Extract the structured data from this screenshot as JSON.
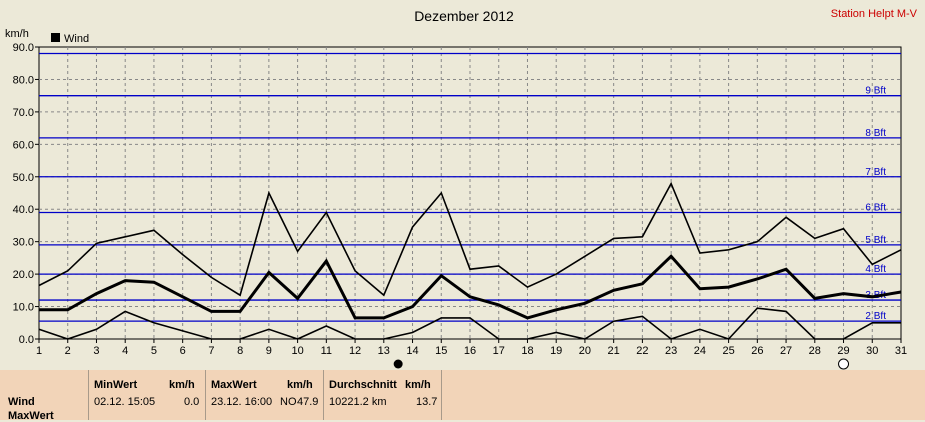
{
  "chart_data": {
    "type": "line",
    "title": "Dezember 2012",
    "station": "Station Helpt M-V",
    "ylabel": "km/h",
    "legend": {
      "label": "Wind",
      "placement": "top-left"
    },
    "ylim": [
      0,
      90
    ],
    "yticks": [
      "0.0",
      "10.0",
      "20.0",
      "30.0",
      "40.0",
      "50.0",
      "60.0",
      "70.0",
      "80.0",
      "90.0"
    ],
    "x": [
      1,
      2,
      3,
      4,
      5,
      6,
      7,
      8,
      9,
      10,
      11,
      12,
      13,
      14,
      15,
      16,
      17,
      18,
      19,
      20,
      21,
      22,
      23,
      24,
      25,
      26,
      27,
      28,
      29,
      30,
      31
    ],
    "beaufort": [
      {
        "label": "2 Bft",
        "value": 5.5
      },
      {
        "label": "3 Bft",
        "value": 12
      },
      {
        "label": "4 Bft",
        "value": 20
      },
      {
        "label": "5 Bft",
        "value": 29
      },
      {
        "label": "6 Bft",
        "value": 39
      },
      {
        "label": "7 Bft",
        "value": 50
      },
      {
        "label": "8 Bft",
        "value": 62
      },
      {
        "label": "9 Bft",
        "value": 75
      },
      {
        "label": "",
        "value": 88
      }
    ],
    "series": [
      {
        "name": "MaxWert",
        "values": [
          16.5,
          21,
          29.5,
          31.5,
          33.5,
          26,
          19,
          13.5,
          45,
          27,
          39,
          21,
          13.5,
          34.5,
          45,
          21.5,
          22.5,
          16,
          20,
          25.5,
          31,
          31.5,
          47.9,
          26.5,
          27.5,
          30,
          37.5,
          31,
          34,
          23,
          27.5
        ]
      },
      {
        "name": "Wind",
        "values": [
          9,
          9,
          14,
          18,
          17.5,
          13,
          8.5,
          8.5,
          20.5,
          12.5,
          24,
          6.5,
          6.5,
          10,
          19.5,
          13,
          10.5,
          6.5,
          9,
          11,
          15,
          17,
          25.5,
          15.5,
          16,
          18.5,
          21.5,
          12.5,
          14,
          13,
          14.5
        ]
      },
      {
        "name": "MinWert",
        "values": [
          3,
          0,
          3,
          8.5,
          5,
          2.5,
          0,
          0,
          3,
          0,
          4,
          0,
          0,
          2,
          6.5,
          6.5,
          0,
          0,
          2,
          0,
          5.5,
          7,
          0,
          3,
          0,
          9.5,
          8.5,
          0,
          0,
          5,
          5
        ]
      }
    ],
    "markers": [
      {
        "x": 13.5,
        "type": "filled-circle"
      },
      {
        "x": 29,
        "type": "open-circle"
      }
    ]
  },
  "panel": {
    "rows": [
      "Wind",
      "MaxWert"
    ],
    "min_header": "MinWert",
    "min_unit": "km/h",
    "min_time": "02.12.  15:05",
    "min_value": "0.0",
    "max_header": "MaxWert",
    "max_unit": "km/h",
    "max_time": "23.12.  16:00",
    "max_dir": "NO",
    "max_value": "47.9",
    "avg_header": "Durchschnitt",
    "avg_unit": "km/h",
    "avg_distance": "10221.2 km",
    "avg_value": "13.7"
  }
}
